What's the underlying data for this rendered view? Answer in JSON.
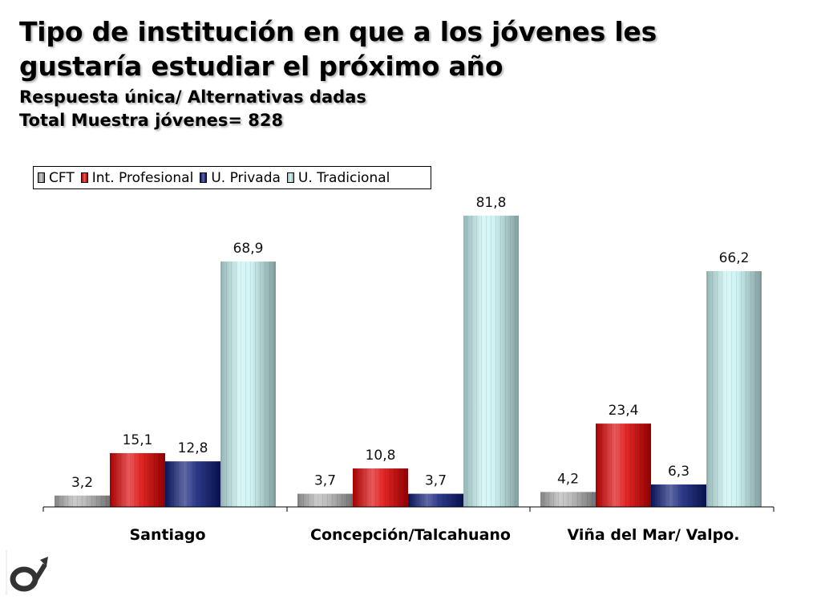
{
  "title": {
    "line1": "Tipo de institución en que a los jóvenes les",
    "line2": "gustaría estudiar el próximo año",
    "subtitle1": "Respuesta única/ Alternativas dadas",
    "subtitle2": "Total Muestra jóvenes= 828"
  },
  "chart_data": {
    "type": "bar",
    "categories": [
      "Santiago",
      "Concepción/Talcahuano",
      "Viña del Mar/ Valpo."
    ],
    "series": [
      {
        "name": "CFT",
        "values": [
          "3,2",
          "3,7",
          "4,2"
        ],
        "color": "#b0b0b0"
      },
      {
        "name": "Int. Profesional",
        "values": [
          "15,1",
          "10,8",
          "23,4"
        ],
        "color": "#e00000"
      },
      {
        "name": "U. Privada",
        "values": [
          "12,8",
          "3,7",
          "6,3"
        ],
        "color": "#0a1a78"
      },
      {
        "name": "U. Tradicional",
        "values": [
          "68,9",
          "81,8",
          "66,2"
        ],
        "color": "#c6f2f2"
      }
    ],
    "legend_position": "top-left",
    "grid": false,
    "ylim": [
      0,
      85
    ]
  }
}
